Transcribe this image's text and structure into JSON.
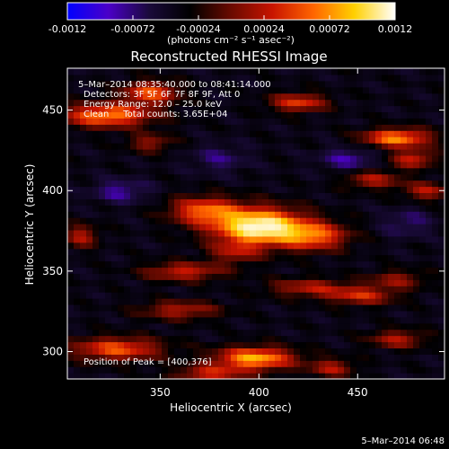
{
  "chart_data": {
    "type": "heatmap",
    "title": "Reconstructed RHESSI Image",
    "xlabel": "Heliocentric X (arcsec)",
    "ylabel": "Heliocentric Y (arcsec)",
    "xlim": [
      303,
      494
    ],
    "ylim": [
      283,
      476
    ],
    "x_ticks": [
      "350",
      "400",
      "450"
    ],
    "x_tick_values": [
      350,
      400,
      450
    ],
    "y_ticks": [
      "300",
      "350",
      "400",
      "450"
    ],
    "y_tick_values": [
      300,
      350,
      400,
      450
    ],
    "colorbar": {
      "range": [
        -0.0012,
        0.0012
      ],
      "tick_labels": [
        "-0.0012",
        "-0.00072",
        "-0.00024",
        "0.00024",
        "0.00072",
        "0.0012"
      ],
      "tick_values": [
        -0.0012,
        -0.00072,
        -0.00024,
        0.00024,
        0.00072,
        0.0012
      ],
      "units_line": "(photons cm⁻² s⁻¹ asec⁻²)",
      "stops": [
        "#0000ff",
        "#4b00c8",
        "#1a0a3a",
        "#000000",
        "#6a0a00",
        "#c81400",
        "#ff6400",
        "#ffd000",
        "#ffffff"
      ]
    },
    "annotations": {
      "time_range": "5–Mar–2014 08:35:40.000 to 08:41:14.000",
      "detectors": "Detectors: 3F 5F 6F 7F 8F 9F, Att 0",
      "energy_range": "Energy Range: 12.0 – 25.0 keV",
      "method_counts": "Clean     Total counts: 3.65E+04",
      "peak_position": "Position of Peak = [400,376]"
    },
    "peak": {
      "x": 400,
      "y": 376
    },
    "background_level": -0.0004,
    "sources": [
      {
        "x": 400,
        "y": 378,
        "sx": 16,
        "sy": 8,
        "amp": 0.0016
      },
      {
        "x": 372,
        "y": 388,
        "sx": 12,
        "sy": 6,
        "amp": 0.0009
      },
      {
        "x": 428,
        "y": 372,
        "sx": 12,
        "sy": 6,
        "amp": 0.0009
      },
      {
        "x": 388,
        "y": 362,
        "sx": 9,
        "sy": 5,
        "amp": 0.0005
      },
      {
        "x": 323,
        "y": 447,
        "sx": 16,
        "sy": 5,
        "amp": 0.0011
      },
      {
        "x": 345,
        "y": 461,
        "sx": 10,
        "sy": 5,
        "amp": 0.0009
      },
      {
        "x": 420,
        "y": 455,
        "sx": 10,
        "sy": 4,
        "amp": 0.0008
      },
      {
        "x": 470,
        "y": 433,
        "sx": 12,
        "sy": 4,
        "amp": 0.0011
      },
      {
        "x": 478,
        "y": 420,
        "sx": 8,
        "sy": 4,
        "amp": 0.0007
      },
      {
        "x": 458,
        "y": 407,
        "sx": 10,
        "sy": 4,
        "amp": 0.0006
      },
      {
        "x": 485,
        "y": 400,
        "sx": 8,
        "sy": 4,
        "amp": 0.0006
      },
      {
        "x": 362,
        "y": 350,
        "sx": 14,
        "sy": 4,
        "amp": 0.0007
      },
      {
        "x": 425,
        "y": 340,
        "sx": 14,
        "sy": 4,
        "amp": 0.0006
      },
      {
        "x": 360,
        "y": 326,
        "sx": 14,
        "sy": 4,
        "amp": 0.0006
      },
      {
        "x": 452,
        "y": 335,
        "sx": 12,
        "sy": 4,
        "amp": 0.0007
      },
      {
        "x": 470,
        "y": 345,
        "sx": 10,
        "sy": 4,
        "amp": 0.0005
      },
      {
        "x": 328,
        "y": 302,
        "sx": 16,
        "sy": 5,
        "amp": 0.0009
      },
      {
        "x": 398,
        "y": 296,
        "sx": 14,
        "sy": 5,
        "amp": 0.0012
      },
      {
        "x": 470,
        "y": 308,
        "sx": 10,
        "sy": 4,
        "amp": 0.0006
      },
      {
        "x": 375,
        "y": 286,
        "sx": 12,
        "sy": 4,
        "amp": 0.0007
      },
      {
        "x": 437,
        "y": 290,
        "sx": 8,
        "sy": 4,
        "amp": 0.0006
      },
      {
        "x": 310,
        "y": 372,
        "sx": 6,
        "sy": 5,
        "amp": 0.0006
      },
      {
        "x": 345,
        "y": 430,
        "sx": 8,
        "sy": 4,
        "amp": 0.0005
      },
      {
        "x": 330,
        "y": 400,
        "sx": 10,
        "sy": 5,
        "amp": -0.0004
      },
      {
        "x": 380,
        "y": 420,
        "sx": 10,
        "sy": 6,
        "amp": -0.0003
      },
      {
        "x": 475,
        "y": 380,
        "sx": 9,
        "sy": 6,
        "amp": -0.0003
      },
      {
        "x": 445,
        "y": 420,
        "sx": 10,
        "sy": 5,
        "amp": -0.0004
      }
    ]
  },
  "footer": {
    "timestamp": "5–Mar–2014 06:48"
  }
}
